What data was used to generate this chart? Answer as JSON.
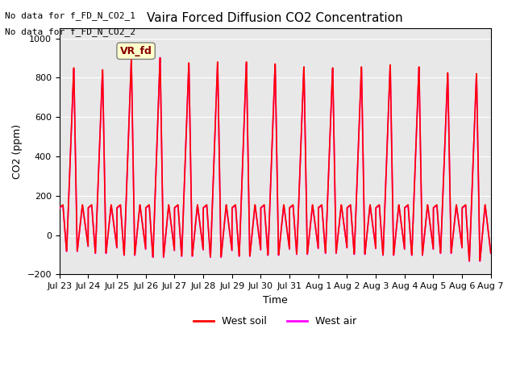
{
  "title": "Vaira Forced Diffusion CO2 Concentration",
  "xlabel": "Time",
  "ylabel": "CO2 (ppm)",
  "ylim": [
    -200,
    1050
  ],
  "yticks": [
    -200,
    0,
    200,
    400,
    600,
    800,
    1000
  ],
  "bg_color": "#e8e8e8",
  "fig_color": "#ffffff",
  "annotation_line1": "No data for f_FD_N_CO2_1",
  "annotation_line2": "No data for f_FD_N_CO2_2",
  "tag_text": "VR_fd",
  "tag_bg": "#ffffcc",
  "tag_fg": "#880000",
  "west_soil_color": "#ff0000",
  "west_air_color": "#ff00ff",
  "legend_labels": [
    "West soil",
    "West air"
  ],
  "xtick_labels": [
    "Jul 23",
    "Jul 24",
    "Jul 25",
    "Jul 26",
    "Jul 27",
    "Jul 28",
    "Jul 29",
    "Jul 30",
    "Jul 31",
    "Aug 1",
    "Aug 2",
    "Aug 3",
    "Aug 4",
    "Aug 5",
    "Aug 6",
    "Aug 7"
  ],
  "num_days": 15,
  "peaks_soil": [
    850,
    840,
    890,
    900,
    875,
    880,
    880,
    870,
    855,
    850,
    855,
    865,
    855,
    825,
    820
  ],
  "peaks_air": [
    845,
    838,
    895,
    905,
    870,
    875,
    875,
    865,
    852,
    847,
    852,
    862,
    850,
    822,
    818
  ],
  "troughs": [
    -80,
    -90,
    -100,
    -110,
    -105,
    -110,
    -105,
    -100,
    -95,
    -90,
    -95,
    -100,
    -100,
    -90,
    -130
  ],
  "baseline": 140,
  "line_width": 1.2
}
